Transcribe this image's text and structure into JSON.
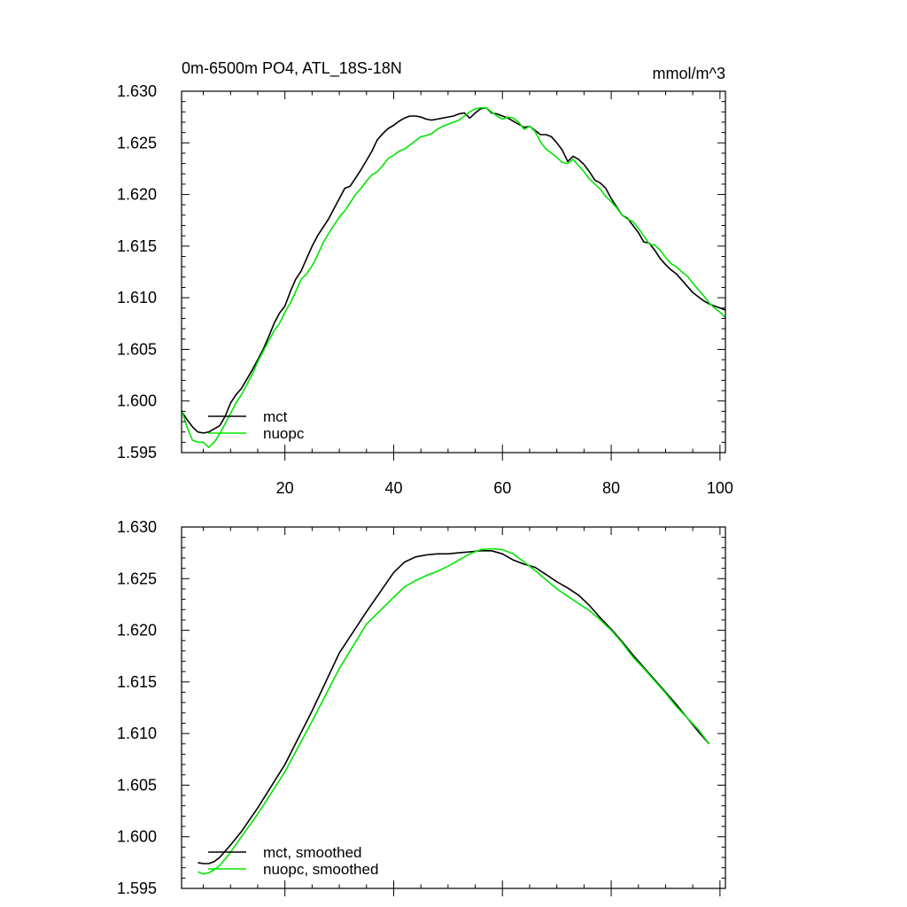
{
  "chart_data": [
    {
      "type": "line",
      "title": "0m-6500m PO4, ATL_18S-18N",
      "units": "mmol/m^3",
      "xlim": [
        1,
        101
      ],
      "ylim": [
        1.595,
        1.63
      ],
      "xticks": [
        20,
        40,
        60,
        80,
        100
      ],
      "yticks": [
        1.595,
        1.6,
        1.605,
        1.61,
        1.615,
        1.62,
        1.625,
        1.63
      ],
      "yticklabels": [
        "1.595",
        "1.600",
        "1.605",
        "1.610",
        "1.615",
        "1.620",
        "1.625",
        "1.630"
      ],
      "xticklabels": [
        "20",
        "40",
        "60",
        "80",
        "100"
      ],
      "legend": "bottom-left",
      "series": [
        {
          "name": "mct",
          "color": "#000000",
          "x": [
            1,
            2,
            3,
            4,
            5,
            6,
            7,
            8,
            9,
            10,
            11,
            12,
            13,
            14,
            15,
            16,
            17,
            18,
            19,
            20,
            21,
            22,
            23,
            24,
            25,
            26,
            27,
            28,
            29,
            30,
            31,
            32,
            33,
            34,
            35,
            36,
            37,
            38,
            39,
            40,
            41,
            42,
            43,
            44,
            45,
            46,
            47,
            48,
            49,
            50,
            51,
            52,
            53,
            54,
            55,
            56,
            57,
            58,
            59,
            60,
            61,
            62,
            63,
            64,
            65,
            66,
            67,
            68,
            69,
            70,
            71,
            72,
            73,
            74,
            75,
            76,
            77,
            78,
            79,
            80,
            81,
            82,
            83,
            84,
            85,
            86,
            87,
            88,
            89,
            90,
            91,
            92,
            93,
            94,
            95,
            96,
            97,
            98,
            99,
            100,
            101
          ],
          "values": [
            1.599,
            1.5982,
            1.5975,
            1.597,
            1.5969,
            1.597,
            1.5973,
            1.5976,
            1.5985,
            1.5998,
            1.6006,
            1.6012,
            1.6021,
            1.603,
            1.604,
            1.605,
            1.6062,
            1.6075,
            1.6085,
            1.6092,
            1.6106,
            1.6118,
            1.6126,
            1.6138,
            1.615,
            1.616,
            1.6168,
            1.6176,
            1.6186,
            1.6196,
            1.6206,
            1.6208,
            1.6216,
            1.6224,
            1.6233,
            1.6242,
            1.6253,
            1.6259,
            1.6264,
            1.6267,
            1.6271,
            1.6274,
            1.6276,
            1.6276,
            1.6275,
            1.6273,
            1.6272,
            1.6273,
            1.6274,
            1.6275,
            1.6276,
            1.6278,
            1.6279,
            1.6274,
            1.6279,
            1.6283,
            1.6284,
            1.6279,
            1.6278,
            1.6276,
            1.6274,
            1.6271,
            1.6268,
            1.6265,
            1.6266,
            1.6262,
            1.6258,
            1.6258,
            1.6256,
            1.625,
            1.6243,
            1.6232,
            1.6237,
            1.6234,
            1.6229,
            1.6222,
            1.6214,
            1.6211,
            1.6206,
            1.6196,
            1.6188,
            1.618,
            1.6177,
            1.617,
            1.6163,
            1.6154,
            1.6153,
            1.6146,
            1.6138,
            1.6132,
            1.6127,
            1.6123,
            1.6117,
            1.6111,
            1.6105,
            1.6101,
            1.6097,
            1.6094,
            1.6092,
            1.609,
            1.6088
          ]
        },
        {
          "name": "nuopc",
          "color": "#00e600",
          "x": [
            1,
            2,
            3,
            4,
            5,
            6,
            7,
            8,
            9,
            10,
            11,
            12,
            13,
            14,
            15,
            16,
            17,
            18,
            19,
            20,
            21,
            22,
            23,
            24,
            25,
            26,
            27,
            28,
            29,
            30,
            31,
            32,
            33,
            34,
            35,
            36,
            37,
            38,
            39,
            40,
            41,
            42,
            43,
            44,
            45,
            46,
            47,
            48,
            49,
            50,
            51,
            52,
            53,
            54,
            55,
            56,
            57,
            58,
            59,
            60,
            61,
            62,
            63,
            64,
            65,
            66,
            67,
            68,
            69,
            70,
            71,
            72,
            73,
            74,
            75,
            76,
            77,
            78,
            79,
            80,
            81,
            82,
            83,
            84,
            85,
            86,
            87,
            88,
            89,
            90,
            91,
            92,
            93,
            94,
            95,
            96,
            97,
            98,
            99,
            100,
            101
          ],
          "values": [
            1.5991,
            1.5975,
            1.5962,
            1.596,
            1.596,
            1.5955,
            1.596,
            1.5968,
            1.5978,
            1.5988,
            1.5998,
            1.6006,
            1.6016,
            1.6026,
            1.6038,
            1.6048,
            1.6058,
            1.6068,
            1.6075,
            1.6086,
            1.6095,
            1.6106,
            1.6118,
            1.6123,
            1.6131,
            1.6141,
            1.6153,
            1.6162,
            1.617,
            1.6178,
            1.6184,
            1.6192,
            1.62,
            1.6206,
            1.6213,
            1.6219,
            1.6222,
            1.6228,
            1.6235,
            1.6238,
            1.6242,
            1.6244,
            1.6248,
            1.6252,
            1.6256,
            1.6257,
            1.6259,
            1.6263,
            1.6266,
            1.6268,
            1.627,
            1.6272,
            1.6276,
            1.628,
            1.6283,
            1.6284,
            1.6284,
            1.628,
            1.6276,
            1.6273,
            1.6275,
            1.6274,
            1.627,
            1.6263,
            1.6266,
            1.6261,
            1.6251,
            1.6244,
            1.624,
            1.6236,
            1.6231,
            1.623,
            1.6234,
            1.6228,
            1.6222,
            1.6215,
            1.621,
            1.6205,
            1.6198,
            1.6193,
            1.6187,
            1.618,
            1.6176,
            1.6174,
            1.6167,
            1.616,
            1.6152,
            1.6151,
            1.6146,
            1.6139,
            1.6133,
            1.613,
            1.6125,
            1.6121,
            1.6114,
            1.6108,
            1.6102,
            1.6095,
            1.609,
            1.6086,
            1.6081
          ]
        }
      ]
    },
    {
      "type": "line",
      "xlim": [
        1,
        101
      ],
      "ylim": [
        1.595,
        1.63
      ],
      "xticks": [
        20,
        40,
        60,
        80,
        100
      ],
      "yticks": [
        1.595,
        1.6,
        1.605,
        1.61,
        1.615,
        1.62,
        1.625,
        1.63
      ],
      "yticklabels": [
        "1.595",
        "1.600",
        "1.605",
        "1.610",
        "1.615",
        "1.620",
        "1.625",
        "1.630"
      ],
      "legend": "bottom-left",
      "series": [
        {
          "name": "mct, smoothed",
          "color": "#000000",
          "x": [
            4,
            5,
            6,
            7,
            8,
            10,
            12,
            15,
            20,
            25,
            30,
            35,
            40,
            42,
            44,
            46,
            48,
            50,
            52,
            54,
            56,
            58,
            60,
            62,
            64,
            66,
            68,
            70,
            72,
            74,
            76,
            78,
            80,
            82,
            84,
            86,
            88,
            90,
            92,
            94,
            96,
            98
          ],
          "values": [
            1.5975,
            1.5974,
            1.5974,
            1.5976,
            1.598,
            1.5992,
            1.6005,
            1.6028,
            1.607,
            1.6122,
            1.6178,
            1.6218,
            1.6256,
            1.6266,
            1.6271,
            1.6273,
            1.6274,
            1.6274,
            1.6275,
            1.6276,
            1.6277,
            1.6277,
            1.6274,
            1.6268,
            1.6264,
            1.6261,
            1.6254,
            1.6247,
            1.6241,
            1.6234,
            1.6224,
            1.6212,
            1.6201,
            1.6189,
            1.6176,
            1.6164,
            1.6152,
            1.614,
            1.6128,
            1.6115,
            1.6102,
            1.609
          ]
        },
        {
          "name": "nuopc, smoothed",
          "color": "#00e600",
          "x": [
            4,
            5,
            6,
            7,
            8,
            10,
            12,
            15,
            20,
            25,
            30,
            35,
            40,
            42,
            44,
            46,
            48,
            50,
            52,
            54,
            56,
            58,
            60,
            62,
            64,
            66,
            68,
            70,
            72,
            74,
            76,
            78,
            80,
            82,
            84,
            86,
            88,
            90,
            92,
            94,
            96,
            98
          ],
          "values": [
            1.5966,
            1.5964,
            1.5965,
            1.5968,
            1.5972,
            1.5985,
            1.6,
            1.6022,
            1.6063,
            1.6112,
            1.6163,
            1.6206,
            1.6232,
            1.6242,
            1.6248,
            1.6253,
            1.6257,
            1.6262,
            1.6268,
            1.6274,
            1.6278,
            1.6279,
            1.6278,
            1.6274,
            1.6266,
            1.6258,
            1.6249,
            1.624,
            1.6233,
            1.6226,
            1.6219,
            1.621,
            1.62,
            1.6188,
            1.6174,
            1.6163,
            1.6151,
            1.6139,
            1.6126,
            1.6115,
            1.6104,
            1.609
          ]
        }
      ]
    }
  ]
}
